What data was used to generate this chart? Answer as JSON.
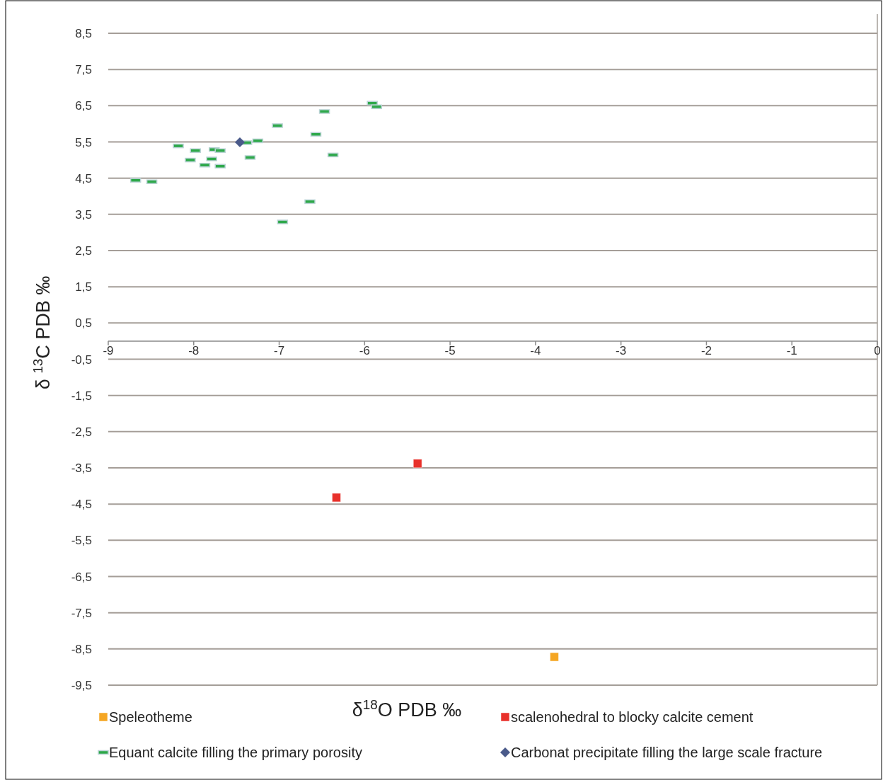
{
  "chart_data": {
    "type": "scatter",
    "xlabel": "δ$^{18}$O PDB ‰",
    "ylabel": "δ $^{13}$C PDB ‰",
    "xlim": [
      -9,
      0
    ],
    "ylim": [
      -9.5,
      8.5
    ],
    "xticks": [
      -9,
      -8,
      -7,
      -6,
      -5,
      -4,
      -3,
      -2,
      -1,
      0
    ],
    "yticks": [
      {
        "value": -9.5,
        "label": "-9,5"
      },
      {
        "value": -8.5,
        "label": "-8,5"
      },
      {
        "value": -7.5,
        "label": "-7,5"
      },
      {
        "value": -6.5,
        "label": "-6,5"
      },
      {
        "value": -5.5,
        "label": "-5,5"
      },
      {
        "value": -4.5,
        "label": "-4,5"
      },
      {
        "value": -3.5,
        "label": "-3,5"
      },
      {
        "value": -2.5,
        "label": "-2,5"
      },
      {
        "value": -1.5,
        "label": "-1,5"
      },
      {
        "value": -0.5,
        "label": "-0,5"
      },
      {
        "value": 0.5,
        "label": "0,5"
      },
      {
        "value": 1.5,
        "label": "1,5"
      },
      {
        "value": 2.5,
        "label": "2,5"
      },
      {
        "value": 3.5,
        "label": "3,5"
      },
      {
        "value": 4.5,
        "label": "4,5"
      },
      {
        "value": 5.5,
        "label": "5,5"
      },
      {
        "value": 6.5,
        "label": "6,5"
      },
      {
        "value": 7.5,
        "label": "7,5"
      },
      {
        "value": 8.5,
        "label": "8,5"
      }
    ],
    "grid": "y",
    "legend": "bottom",
    "series": [
      {
        "name": "Speleotheme",
        "color": "#f5a623",
        "marker": "square",
        "x": [
          -3.78
        ],
        "values": [
          -8.72
        ]
      },
      {
        "name": "scalenohedral to blocky calcite cement",
        "color": "#e8312b",
        "marker": "square",
        "x": [
          -5.38,
          -6.33
        ],
        "values": [
          -3.38,
          -4.32
        ]
      },
      {
        "name": "Equant calcite filling the primary porosity",
        "color": "#2ea84a",
        "x": [
          -5.91,
          -5.86,
          -6.47,
          -7.02,
          -6.57,
          -8.18,
          -7.98,
          -7.76,
          -7.69,
          -7.38,
          -7.25,
          -8.04,
          -7.79,
          -7.87,
          -7.69,
          -7.34,
          -6.37,
          -8.68,
          -8.49,
          -6.64,
          -6.96
        ],
        "values": [
          6.57,
          6.47,
          6.34,
          5.95,
          5.71,
          5.39,
          5.26,
          5.29,
          5.26,
          5.48,
          5.53,
          5.0,
          5.03,
          4.86,
          4.83,
          5.07,
          5.14,
          4.44,
          4.4,
          3.85,
          3.29
        ]
      },
      {
        "name": "Carbonat precipitate filling the large scale fracture",
        "color": "#4a5a8a",
        "marker": "diamond",
        "x": [
          -7.46
        ],
        "values": [
          5.49
        ]
      }
    ]
  }
}
